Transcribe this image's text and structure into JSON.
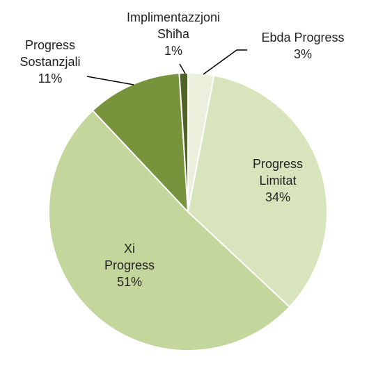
{
  "chart_data": {
    "type": "pie",
    "title": "",
    "slices": [
      {
        "label_lines": [
          "Ebda Progress"
        ],
        "value": 3,
        "value_text": "3%",
        "color": "#eaf0dc"
      },
      {
        "label_lines": [
          "Progress",
          "Limitat"
        ],
        "value": 34,
        "value_text": "34%",
        "color": "#d8e4bc"
      },
      {
        "label_lines": [
          "Xi",
          "Progress"
        ],
        "value": 51,
        "value_text": "51%",
        "color": "#c3d69b"
      },
      {
        "label_lines": [
          "Progress",
          "Sostanzjali"
        ],
        "value": 11,
        "value_text": "11%",
        "color": "#77933c"
      },
      {
        "label_lines": [
          "Implimentazzjoni",
          "Sħiħa"
        ],
        "value": 1,
        "value_text": "1%",
        "color": "#4f6228"
      }
    ],
    "legend": "none",
    "start_angle": "top",
    "direction": "clockwise"
  }
}
